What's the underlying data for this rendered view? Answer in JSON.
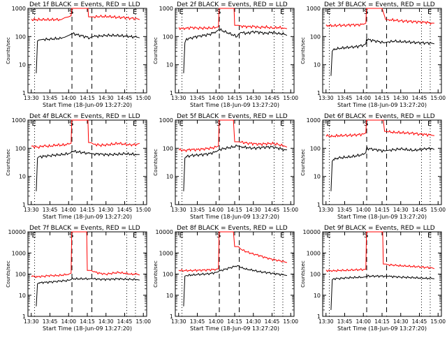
{
  "colors": {
    "events": "#000000",
    "lld": "#ff0000",
    "axis": "#000000"
  },
  "shared": {
    "ylabel": "Counts/sec",
    "xlabel": "Start Time (18-Jun-09 13:27:20)",
    "xticks": [
      "13:30",
      "13:45",
      "14:00",
      "14:15",
      "14:30",
      "14:45",
      "15:00"
    ],
    "marker_labels": [
      "E",
      "S",
      "E"
    ]
  },
  "chart_data": [
    {
      "type": "line",
      "title": "Det 1f BLACK = Events, RED = LLD",
      "ylim": [
        1,
        1000
      ],
      "ytick_labels": [
        "1",
        "10",
        "100",
        "1000"
      ],
      "markers_min": [
        2.67,
        32.67,
        48.67,
        76.67,
        83.67
      ],
      "series": [
        {
          "name": "LLD",
          "x": [
            0,
            24,
            25,
            27,
            30,
            32,
            32.5,
            45.5,
            46,
            48,
            50,
            55,
            60,
            65,
            70,
            75,
            80,
            85,
            87
          ],
          "y": [
            400,
            400,
            420,
            470,
            500,
            550,
            1000,
            1000,
            500,
            500,
            500,
            510,
            520,
            500,
            480,
            470,
            450,
            430,
            400
          ]
        },
        {
          "name": "Events",
          "x": [
            4,
            5,
            6,
            8,
            10,
            15,
            20,
            24,
            25,
            27,
            30,
            32,
            32.5,
            47,
            48,
            50,
            55,
            60,
            65,
            70,
            75,
            80,
            85,
            87
          ],
          "y": [
            5,
            70,
            75,
            78,
            80,
            80,
            85,
            85,
            90,
            95,
            110,
            120,
            130,
            90,
            95,
            100,
            105,
            110,
            110,
            108,
            105,
            100,
            95,
            90
          ]
        }
      ]
    },
    {
      "type": "line",
      "title": "Det 2f BLACK = Events, RED = LLD",
      "ylim": [
        1,
        1000
      ],
      "ytick_labels": [
        "1",
        "10",
        "100",
        "1000"
      ],
      "markers_min": [
        2.67,
        32.67,
        48.67,
        76.67,
        83.67
      ],
      "series": [
        {
          "name": "LLD",
          "x": [
            0,
            5,
            10,
            15,
            20,
            25,
            30,
            32,
            32.5,
            44.5,
            45,
            48,
            50,
            55,
            60,
            65,
            70,
            75,
            80,
            85,
            87
          ],
          "y": [
            200,
            190,
            210,
            200,
            200,
            200,
            210,
            220,
            1000,
            1000,
            250,
            250,
            240,
            220,
            230,
            210,
            220,
            200,
            210,
            200,
            190
          ]
        },
        {
          "name": "Events",
          "x": [
            4,
            5,
            6,
            10,
            15,
            20,
            25,
            30,
            32,
            32.5,
            47,
            48,
            50,
            55,
            60,
            65,
            70,
            75,
            80,
            85,
            87
          ],
          "y": [
            5,
            60,
            80,
            90,
            100,
            110,
            120,
            150,
            170,
            180,
            100,
            120,
            140,
            130,
            150,
            140,
            130,
            140,
            130,
            120,
            110
          ]
        }
      ]
    },
    {
      "type": "line",
      "title": "Det 3f BLACK = Events, RED = LLD",
      "ylim": [
        1,
        1000
      ],
      "ytick_labels": [
        "1",
        "10",
        "100",
        "1000"
      ],
      "markers_min": [
        2.67,
        32.67,
        48.67,
        76.67,
        83.67
      ],
      "series": [
        {
          "name": "LLD",
          "x": [
            0,
            5,
            10,
            15,
            20,
            25,
            30,
            32,
            32.5,
            45,
            48,
            50,
            55,
            60,
            65,
            70,
            75,
            80,
            85,
            87
          ],
          "y": [
            250,
            240,
            250,
            250,
            260,
            260,
            270,
            300,
            1000,
            1000,
            400,
            400,
            380,
            360,
            350,
            340,
            330,
            320,
            300,
            300
          ]
        },
        {
          "name": "Events",
          "x": [
            4,
            5,
            6,
            10,
            15,
            20,
            25,
            30,
            32,
            32.5,
            47,
            48,
            50,
            55,
            60,
            65,
            70,
            75,
            80,
            85,
            87
          ],
          "y": [
            4,
            30,
            35,
            38,
            40,
            42,
            44,
            50,
            55,
            80,
            60,
            62,
            65,
            68,
            66,
            65,
            62,
            60,
            60,
            58,
            55
          ]
        }
      ]
    },
    {
      "type": "line",
      "title": "Det 4f BLACK = Events, RED = LLD",
      "ylim": [
        1,
        1000
      ],
      "ytick_labels": [
        "1",
        "10",
        "100",
        "1000"
      ],
      "markers_min": [
        2.67,
        32.67,
        48.67,
        76.67,
        83.67
      ],
      "series": [
        {
          "name": "LLD",
          "x": [
            0,
            5,
            10,
            15,
            20,
            25,
            30,
            32,
            32.5,
            45.5,
            46,
            48,
            50,
            55,
            60,
            65,
            70,
            75,
            80,
            85,
            87
          ],
          "y": [
            120,
            110,
            120,
            120,
            130,
            130,
            140,
            150,
            1000,
            1000,
            160,
            160,
            140,
            130,
            130,
            140,
            150,
            140,
            130,
            140,
            150
          ]
        },
        {
          "name": "Events",
          "x": [
            4,
            5,
            6,
            10,
            15,
            20,
            25,
            30,
            32,
            32.5,
            47,
            48,
            50,
            55,
            60,
            65,
            70,
            75,
            80,
            85,
            87
          ],
          "y": [
            3,
            45,
            50,
            52,
            55,
            58,
            60,
            65,
            70,
            80,
            65,
            66,
            64,
            62,
            60,
            60,
            62,
            64,
            62,
            60,
            60
          ]
        }
      ]
    },
    {
      "type": "line",
      "title": "Det 5f BLACK = Events, RED = LLD",
      "ylim": [
        1,
        1000
      ],
      "ytick_labels": [
        "1",
        "10",
        "100",
        "1000"
      ],
      "markers_min": [
        2.67,
        32.67,
        48.67,
        76.67,
        83.67
      ],
      "series": [
        {
          "name": "LLD",
          "x": [
            0,
            5,
            10,
            15,
            20,
            25,
            30,
            32,
            32.5,
            44,
            45,
            48,
            50,
            55,
            60,
            65,
            70,
            75,
            80,
            85,
            87
          ],
          "y": [
            90,
            85,
            90,
            90,
            95,
            100,
            110,
            120,
            1000,
            1000,
            170,
            170,
            165,
            155,
            145,
            140,
            145,
            150,
            135,
            120,
            110
          ]
        },
        {
          "name": "Events",
          "x": [
            4,
            5,
            6,
            10,
            15,
            20,
            25,
            30,
            32,
            32.5,
            47,
            48,
            50,
            55,
            60,
            65,
            70,
            75,
            80,
            85,
            87
          ],
          "y": [
            3,
            45,
            50,
            55,
            58,
            60,
            65,
            75,
            85,
            90,
            120,
            120,
            115,
            105,
            100,
            105,
            110,
            112,
            100,
            90,
            88
          ]
        }
      ]
    },
    {
      "type": "line",
      "title": "Det 6f BLACK = Events, RED = LLD",
      "ylim": [
        1,
        1000
      ],
      "ytick_labels": [
        "1",
        "10",
        "100",
        "1000"
      ],
      "markers_min": [
        2.67,
        32.67,
        48.67,
        76.67,
        83.67
      ],
      "series": [
        {
          "name": "LLD",
          "x": [
            0,
            5,
            10,
            15,
            20,
            25,
            30,
            32,
            32.5,
            46,
            47,
            48,
            50,
            55,
            60,
            65,
            70,
            75,
            80,
            85,
            87
          ],
          "y": [
            280,
            270,
            280,
            285,
            290,
            300,
            320,
            350,
            1000,
            1000,
            400,
            400,
            380,
            370,
            360,
            350,
            340,
            320,
            310,
            290,
            280
          ]
        },
        {
          "name": "Events",
          "x": [
            4,
            5,
            6,
            10,
            15,
            20,
            25,
            30,
            32,
            32.5,
            47,
            48,
            50,
            55,
            60,
            65,
            70,
            75,
            80,
            85,
            87
          ],
          "y": [
            3,
            35,
            40,
            45,
            48,
            50,
            55,
            60,
            70,
            100,
            80,
            82,
            85,
            90,
            95,
            90,
            85,
            90,
            95,
            100,
            90
          ]
        }
      ]
    },
    {
      "type": "line",
      "title": "Det 7f BLACK = Events, RED = LLD",
      "ylim": [
        1,
        10000
      ],
      "ytick_labels": [
        "1",
        "10",
        "100",
        "1000",
        "10000"
      ],
      "markers_min": [
        2.67,
        32.67,
        48.67,
        76.67,
        83.67
      ],
      "series": [
        {
          "name": "LLD",
          "x": [
            0,
            5,
            10,
            15,
            20,
            25,
            30,
            32,
            32.5,
            44.5,
            45,
            48,
            50,
            55,
            60,
            65,
            70,
            75,
            80,
            85,
            87
          ],
          "y": [
            80,
            75,
            80,
            85,
            85,
            90,
            100,
            110,
            10000,
            10000,
            150,
            150,
            130,
            110,
            100,
            110,
            120,
            110,
            100,
            100,
            90
          ]
        },
        {
          "name": "Events",
          "x": [
            4,
            5,
            6,
            10,
            15,
            20,
            25,
            30,
            32,
            32.5,
            47,
            48,
            50,
            55,
            60,
            65,
            70,
            75,
            80,
            85,
            87
          ],
          "y": [
            3,
            35,
            38,
            40,
            42,
            45,
            48,
            50,
            55,
            60,
            60,
            62,
            60,
            58,
            56,
            58,
            60,
            58,
            56,
            55,
            52
          ]
        }
      ]
    },
    {
      "type": "line",
      "title": "Det 8f BLACK = Events, RED = LLD",
      "ylim": [
        1,
        10000
      ],
      "ytick_labels": [
        "1",
        "10",
        "100",
        "1000",
        "10000"
      ],
      "markers_min": [
        2.67,
        32.67,
        48.67,
        76.67,
        83.67
      ],
      "series": [
        {
          "name": "LLD",
          "x": [
            0,
            5,
            10,
            15,
            20,
            25,
            30,
            32,
            32.5,
            44,
            45,
            48,
            50,
            55,
            60,
            65,
            70,
            75,
            80,
            85,
            87
          ],
          "y": [
            150,
            145,
            150,
            150,
            155,
            160,
            170,
            180,
            10000,
            10000,
            2000,
            2000,
            1500,
            1100,
            900,
            750,
            600,
            500,
            450,
            380,
            350
          ]
        },
        {
          "name": "Events",
          "x": [
            4,
            5,
            6,
            10,
            15,
            20,
            25,
            30,
            32,
            32.5,
            47,
            48,
            50,
            55,
            60,
            65,
            70,
            75,
            80,
            85,
            87
          ],
          "y": [
            3,
            80,
            85,
            90,
            95,
            100,
            105,
            120,
            130,
            140,
            250,
            250,
            200,
            170,
            150,
            130,
            120,
            110,
            100,
            90,
            85
          ]
        }
      ]
    },
    {
      "type": "line",
      "title": "Det 9f BLACK = Events, RED = LLD",
      "ylim": [
        1,
        10000
      ],
      "ytick_labels": [
        "1",
        "10",
        "100",
        "1000",
        "10000"
      ],
      "markers_min": [
        2.67,
        32.67,
        48.67,
        76.67,
        83.67
      ],
      "series": [
        {
          "name": "LLD",
          "x": [
            0,
            5,
            10,
            15,
            20,
            25,
            30,
            32,
            32.5,
            45.5,
            46,
            48,
            50,
            55,
            60,
            65,
            70,
            75,
            80,
            85,
            87
          ],
          "y": [
            150,
            140,
            150,
            150,
            155,
            160,
            165,
            170,
            10000,
            10000,
            300,
            300,
            280,
            260,
            250,
            240,
            230,
            220,
            210,
            200,
            180
          ]
        },
        {
          "name": "Events",
          "x": [
            4,
            5,
            6,
            10,
            15,
            20,
            25,
            30,
            32,
            32.5,
            47,
            48,
            50,
            55,
            60,
            65,
            70,
            75,
            80,
            85,
            87
          ],
          "y": [
            2,
            55,
            60,
            62,
            65,
            68,
            70,
            72,
            75,
            80,
            80,
            80,
            78,
            76,
            72,
            70,
            68,
            66,
            64,
            62,
            60
          ]
        }
      ]
    }
  ]
}
